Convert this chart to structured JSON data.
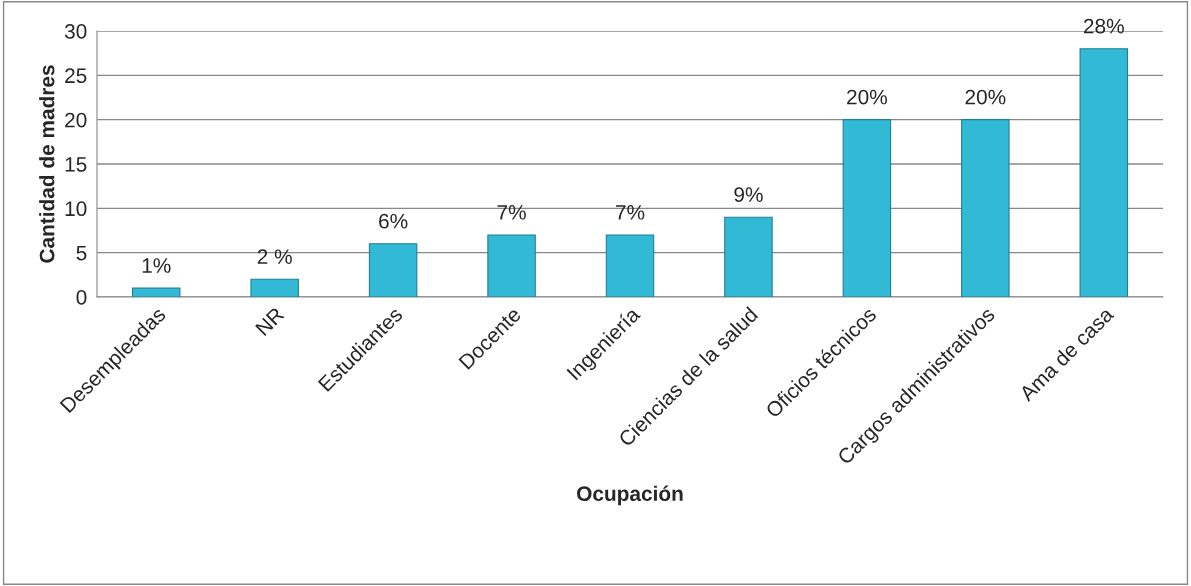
{
  "chart_data": {
    "type": "bar",
    "categories": [
      "Desempleadas",
      "NR",
      "Estudiantes",
      "Docente",
      "Ingeniería",
      "Ciencias de la salud",
      "Oficios técnicos",
      "Cargos administrativos",
      "Ama de casa"
    ],
    "values": [
      1,
      2,
      6,
      7,
      7,
      9,
      20,
      20,
      28
    ],
    "value_labels": [
      "1%",
      "2 %",
      "6%",
      "7%",
      "7%",
      "9%",
      "20%",
      "20%",
      "28%"
    ],
    "color": "#31b9d6",
    "xlabel": "Ocupación",
    "ylabel": "Cantidad de madres",
    "ylim": [
      0,
      30
    ],
    "yticks": [
      0,
      5,
      10,
      15,
      20,
      25,
      30
    ],
    "grid": "y"
  }
}
